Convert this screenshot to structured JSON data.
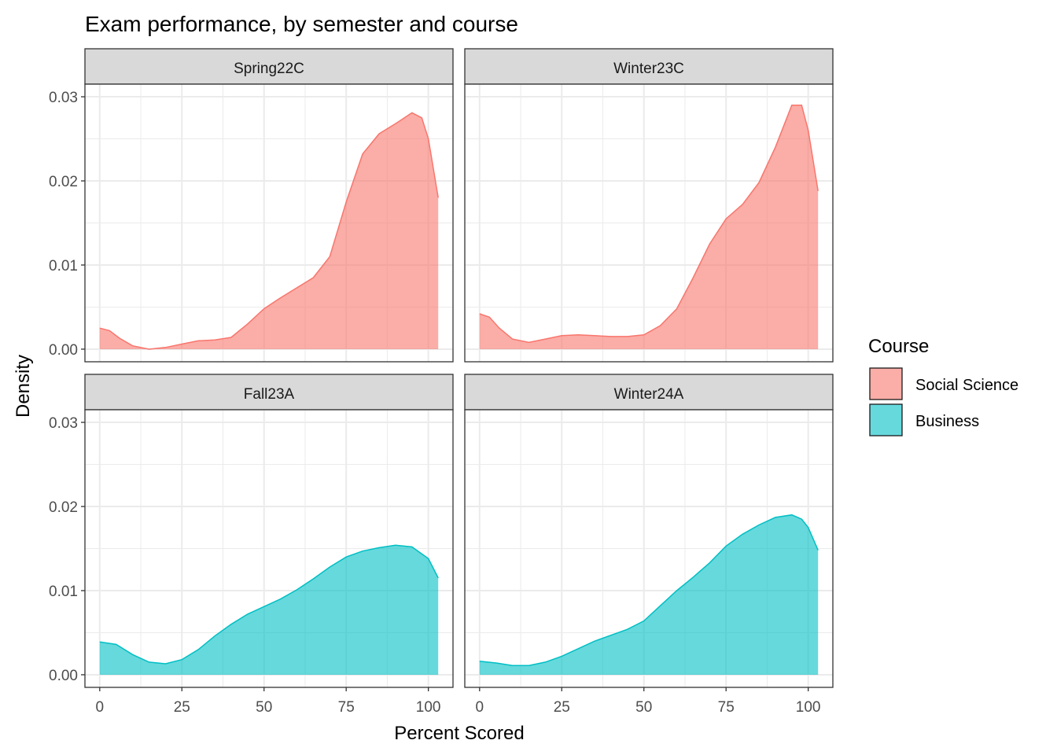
{
  "chart_data": {
    "type": "area",
    "title": "Exam performance, by semester and course",
    "xlabel": "Percent Scored",
    "ylabel": "Density",
    "xlim": [
      -4.5,
      107.5
    ],
    "ylim": [
      -0.0015,
      0.0315
    ],
    "x_ticks": [
      0,
      25,
      50,
      75,
      100
    ],
    "x_tick_labels": [
      "0",
      "25",
      "50",
      "75",
      "100"
    ],
    "y_ticks": [
      0,
      0.01,
      0.02,
      0.03
    ],
    "y_tick_labels": [
      "0.00",
      "0.01",
      "0.02",
      "0.03"
    ],
    "grid": true,
    "legend": {
      "title": "Course",
      "position": "right",
      "entries": [
        {
          "name": "Social Science",
          "fill": "#F8766D",
          "color": "#F8766D"
        },
        {
          "name": "Business",
          "fill": "#00BFC4",
          "color": "#00BFC4"
        }
      ]
    },
    "panels": [
      {
        "strip": "Spring22C",
        "course": "Social Science",
        "x": [
          0,
          3,
          6,
          10,
          15,
          20,
          25,
          30,
          35,
          40,
          45,
          50,
          55,
          60,
          65,
          70,
          75,
          80,
          85,
          90,
          95,
          98,
          100,
          103
        ],
        "y": [
          0.0025,
          0.0022,
          0.0013,
          0.0004,
          0.0,
          0.0002,
          0.0006,
          0.001,
          0.0011,
          0.0014,
          0.003,
          0.0048,
          0.0061,
          0.0073,
          0.0085,
          0.011,
          0.0175,
          0.0232,
          0.0256,
          0.0268,
          0.0281,
          0.0275,
          0.025,
          0.018
        ]
      },
      {
        "strip": "Winter23C",
        "course": "Social Science",
        "x": [
          0,
          3,
          6,
          10,
          15,
          20,
          25,
          30,
          35,
          40,
          45,
          50,
          55,
          60,
          65,
          70,
          75,
          80,
          85,
          90,
          95,
          98,
          100,
          103
        ],
        "y": [
          0.0042,
          0.0038,
          0.0025,
          0.0012,
          0.0008,
          0.0012,
          0.0016,
          0.0017,
          0.0016,
          0.0015,
          0.0015,
          0.0017,
          0.0028,
          0.0048,
          0.0085,
          0.0125,
          0.0155,
          0.0172,
          0.0198,
          0.024,
          0.029,
          0.029,
          0.026,
          0.0188
        ]
      },
      {
        "strip": "Fall23A",
        "course": "Business",
        "x": [
          0,
          5,
          10,
          15,
          20,
          25,
          30,
          35,
          40,
          45,
          50,
          55,
          60,
          65,
          70,
          75,
          80,
          85,
          90,
          95,
          100,
          103
        ],
        "y": [
          0.0039,
          0.0036,
          0.0024,
          0.0015,
          0.0013,
          0.0018,
          0.003,
          0.0046,
          0.006,
          0.0072,
          0.0081,
          0.009,
          0.0101,
          0.0114,
          0.0128,
          0.014,
          0.0147,
          0.0151,
          0.0154,
          0.0152,
          0.0138,
          0.0115
        ]
      },
      {
        "strip": "Winter24A",
        "course": "Business",
        "x": [
          0,
          5,
          10,
          15,
          20,
          25,
          30,
          35,
          40,
          45,
          50,
          55,
          60,
          65,
          70,
          75,
          80,
          85,
          90,
          95,
          98,
          100,
          103
        ],
        "y": [
          0.0016,
          0.0014,
          0.0011,
          0.0011,
          0.0015,
          0.0022,
          0.0031,
          0.004,
          0.0047,
          0.0054,
          0.0064,
          0.0082,
          0.01,
          0.0116,
          0.0133,
          0.0153,
          0.0167,
          0.0178,
          0.0187,
          0.019,
          0.0185,
          0.0175,
          0.0148
        ]
      }
    ]
  }
}
